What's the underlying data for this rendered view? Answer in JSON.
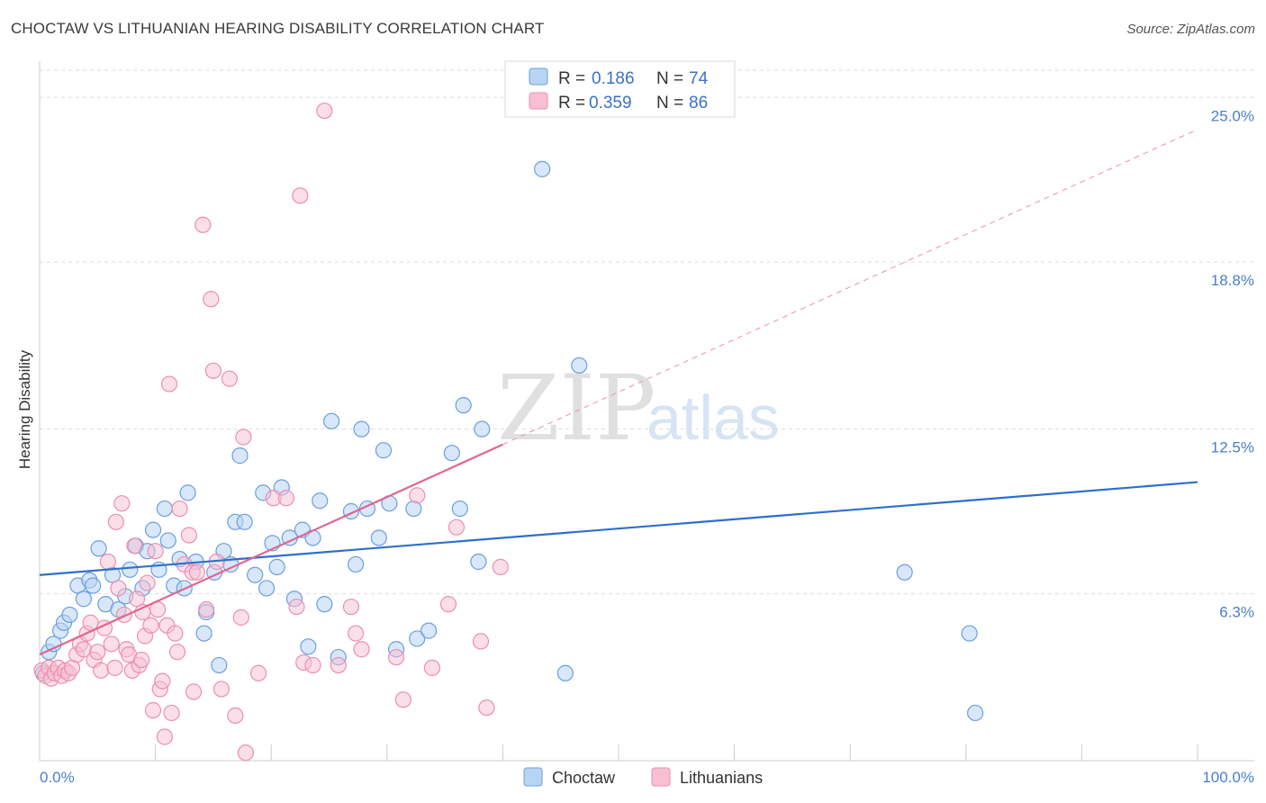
{
  "title": "CHOCTAW VS LITHUANIAN HEARING DISABILITY CORRELATION CHART",
  "source": "Source: ZipAtlas.com",
  "watermark": {
    "zip": "ZIP",
    "atlas": "atlas"
  },
  "legend": {
    "r_label": "R =",
    "n_label": "N =",
    "items": [
      {
        "r": "0.186",
        "n": "74"
      },
      {
        "r": "0.359",
        "n": "86"
      }
    ]
  },
  "bottom_legend": [
    "Choctaw",
    "Lithuanians"
  ],
  "colors": {
    "choctaw_fill": "#b8d4f5",
    "choctaw_stroke": "#6b9fdc",
    "choctaw_line": "#2e6fcc",
    "lith_fill": "#f7bfd1",
    "lith_stroke": "#ec8fae",
    "lith_line": "#e06690",
    "tick_text": "#4a7fc8",
    "grid": "#dddddd"
  },
  "chart_data": {
    "type": "scatter",
    "title": "CHOCTAW VS LITHUANIAN HEARING DISABILITY CORRELATION CHART",
    "xlabel": "",
    "ylabel": "Hearing Disability",
    "xlim": [
      0,
      100
    ],
    "ylim": [
      0,
      26.3
    ],
    "x_tick_labels": [
      "0.0%",
      "100.0%"
    ],
    "y_ticks": [
      6.3,
      12.5,
      18.8,
      25.0
    ],
    "y_tick_labels": [
      "6.3%",
      "12.5%",
      "18.8%",
      "25.0%"
    ],
    "grid": true,
    "legend_position": "top-center",
    "series": [
      {
        "name": "Choctaw",
        "r": 0.186,
        "n": 74,
        "trend": {
          "x0": 0,
          "y0": 7.0,
          "x1": 100,
          "y1": 10.5
        },
        "points": [
          [
            0.3,
            3.3
          ],
          [
            0.8,
            4.1
          ],
          [
            1.2,
            4.4
          ],
          [
            1.8,
            4.9
          ],
          [
            2.1,
            5.2
          ],
          [
            2.6,
            5.5
          ],
          [
            3.3,
            6.6
          ],
          [
            3.8,
            6.1
          ],
          [
            4.3,
            6.8
          ],
          [
            4.6,
            6.6
          ],
          [
            5.1,
            8.0
          ],
          [
            5.7,
            5.9
          ],
          [
            6.3,
            7.0
          ],
          [
            6.8,
            5.7
          ],
          [
            7.4,
            6.2
          ],
          [
            7.8,
            7.2
          ],
          [
            8.3,
            8.1
          ],
          [
            8.9,
            6.5
          ],
          [
            9.3,
            7.9
          ],
          [
            9.8,
            8.7
          ],
          [
            10.3,
            7.2
          ],
          [
            10.8,
            9.5
          ],
          [
            11.1,
            8.3
          ],
          [
            11.6,
            6.6
          ],
          [
            12.1,
            7.6
          ],
          [
            12.5,
            6.5
          ],
          [
            12.8,
            10.1
          ],
          [
            13.5,
            7.5
          ],
          [
            14.2,
            4.8
          ],
          [
            14.4,
            5.6
          ],
          [
            15.1,
            7.1
          ],
          [
            15.5,
            3.6
          ],
          [
            15.9,
            7.9
          ],
          [
            16.5,
            7.4
          ],
          [
            16.9,
            9.0
          ],
          [
            17.3,
            11.5
          ],
          [
            17.7,
            9.0
          ],
          [
            18.6,
            7.0
          ],
          [
            19.3,
            10.1
          ],
          [
            19.6,
            6.5
          ],
          [
            20.1,
            8.2
          ],
          [
            20.5,
            7.3
          ],
          [
            20.9,
            10.3
          ],
          [
            21.6,
            8.4
          ],
          [
            22.0,
            6.1
          ],
          [
            22.7,
            8.7
          ],
          [
            23.2,
            4.3
          ],
          [
            23.6,
            8.4
          ],
          [
            24.2,
            9.8
          ],
          [
            24.6,
            5.9
          ],
          [
            25.2,
            12.8
          ],
          [
            25.8,
            3.9
          ],
          [
            26.9,
            9.4
          ],
          [
            27.3,
            7.4
          ],
          [
            27.8,
            12.5
          ],
          [
            28.3,
            9.5
          ],
          [
            29.3,
            8.4
          ],
          [
            29.7,
            11.7
          ],
          [
            30.2,
            9.7
          ],
          [
            30.8,
            4.2
          ],
          [
            32.3,
            9.5
          ],
          [
            32.6,
            4.6
          ],
          [
            33.6,
            4.9
          ],
          [
            35.6,
            11.6
          ],
          [
            36.3,
            9.5
          ],
          [
            36.6,
            13.4
          ],
          [
            38.2,
            12.5
          ],
          [
            37.9,
            7.5
          ],
          [
            43.4,
            22.3
          ],
          [
            45.4,
            3.3
          ],
          [
            46.6,
            14.9
          ],
          [
            74.7,
            7.1
          ],
          [
            80.3,
            4.8
          ],
          [
            80.8,
            1.8
          ]
        ]
      },
      {
        "name": "Lithuanians",
        "r": 0.359,
        "n": 86,
        "trend": {
          "x0": 0,
          "y0": 4.0,
          "x1": 100,
          "y1": 23.8
        },
        "trend_solid_to_x": 40,
        "points": [
          [
            0.2,
            3.4
          ],
          [
            0.5,
            3.2
          ],
          [
            0.8,
            3.5
          ],
          [
            1.0,
            3.1
          ],
          [
            1.3,
            3.3
          ],
          [
            1.6,
            3.5
          ],
          [
            1.9,
            3.2
          ],
          [
            2.2,
            3.4
          ],
          [
            2.5,
            3.3
          ],
          [
            2.8,
            3.5
          ],
          [
            3.2,
            4.0
          ],
          [
            3.5,
            4.4
          ],
          [
            3.8,
            4.2
          ],
          [
            4.1,
            4.8
          ],
          [
            4.4,
            5.2
          ],
          [
            4.7,
            3.8
          ],
          [
            5.0,
            4.1
          ],
          [
            5.3,
            3.4
          ],
          [
            5.6,
            5.0
          ],
          [
            5.9,
            7.5
          ],
          [
            6.2,
            4.4
          ],
          [
            6.5,
            3.5
          ],
          [
            6.6,
            9.0
          ],
          [
            6.8,
            6.5
          ],
          [
            7.1,
            9.7
          ],
          [
            7.3,
            5.5
          ],
          [
            7.5,
            4.2
          ],
          [
            7.7,
            4.0
          ],
          [
            8.0,
            3.4
          ],
          [
            8.2,
            8.1
          ],
          [
            8.4,
            6.1
          ],
          [
            8.6,
            3.6
          ],
          [
            8.8,
            3.8
          ],
          [
            8.9,
            5.6
          ],
          [
            9.1,
            4.7
          ],
          [
            9.3,
            6.7
          ],
          [
            9.6,
            5.1
          ],
          [
            9.8,
            1.9
          ],
          [
            10.0,
            7.9
          ],
          [
            10.2,
            5.7
          ],
          [
            10.4,
            2.7
          ],
          [
            10.6,
            3.0
          ],
          [
            10.8,
            0.9
          ],
          [
            11.0,
            5.1
          ],
          [
            11.2,
            14.2
          ],
          [
            11.4,
            1.8
          ],
          [
            11.7,
            4.8
          ],
          [
            11.9,
            4.1
          ],
          [
            12.1,
            9.5
          ],
          [
            12.5,
            7.4
          ],
          [
            12.9,
            8.5
          ],
          [
            13.2,
            7.1
          ],
          [
            13.3,
            2.6
          ],
          [
            13.6,
            7.1
          ],
          [
            14.1,
            20.2
          ],
          [
            14.4,
            5.7
          ],
          [
            14.8,
            17.4
          ],
          [
            15.0,
            14.7
          ],
          [
            15.3,
            7.5
          ],
          [
            15.7,
            2.7
          ],
          [
            16.4,
            14.4
          ],
          [
            16.9,
            1.7
          ],
          [
            17.4,
            5.4
          ],
          [
            17.6,
            12.2
          ],
          [
            17.8,
            0.3
          ],
          [
            18.9,
            3.3
          ],
          [
            20.2,
            9.9
          ],
          [
            21.3,
            9.9
          ],
          [
            22.2,
            5.8
          ],
          [
            22.5,
            21.3
          ],
          [
            22.8,
            3.7
          ],
          [
            23.6,
            3.6
          ],
          [
            24.6,
            24.5
          ],
          [
            25.8,
            3.6
          ],
          [
            26.9,
            5.8
          ],
          [
            27.3,
            4.8
          ],
          [
            27.8,
            4.2
          ],
          [
            30.8,
            3.9
          ],
          [
            31.4,
            2.3
          ],
          [
            32.6,
            10.0
          ],
          [
            33.9,
            3.5
          ],
          [
            35.3,
            5.9
          ],
          [
            36.0,
            8.8
          ],
          [
            38.1,
            4.5
          ],
          [
            38.6,
            2.0
          ],
          [
            39.8,
            7.3
          ]
        ]
      }
    ]
  }
}
